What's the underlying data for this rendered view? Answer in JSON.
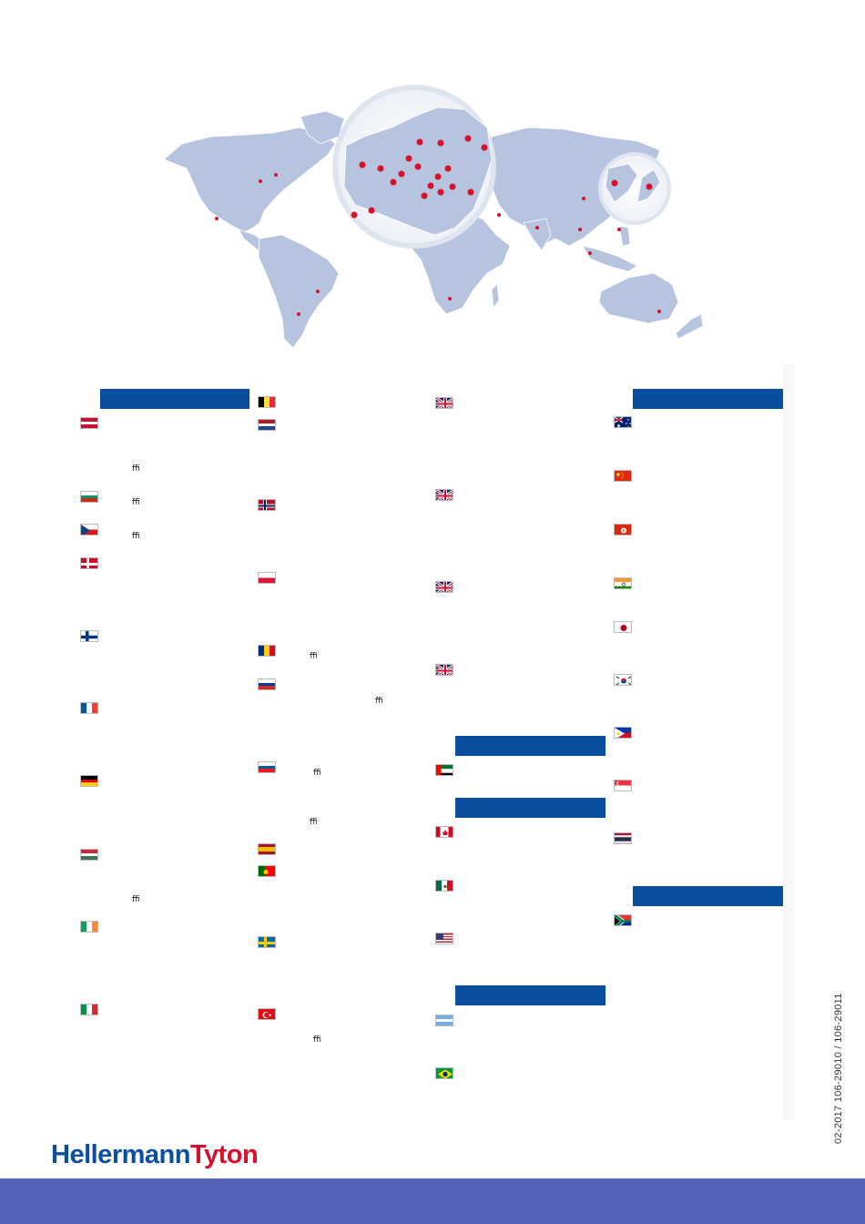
{
  "brand": {
    "part1": "Hellermann",
    "part2": "Tyton"
  },
  "document": {
    "code": "02-2017     106-29010 / 106-29011"
  },
  "ligatures": {
    "text": "ﬃ"
  },
  "colors": {
    "header_bar": "#0a4ea0",
    "footer_band": "#5562b6",
    "map_land": "#b6c4e0",
    "map_dot": "#d7102b"
  },
  "region_headers": [
    "",
    "",
    "",
    "",
    "",
    "",
    ""
  ],
  "flags": [
    "austria-flag",
    "bulgaria-flag",
    "czech-republic-flag",
    "denmark-flag",
    "finland-flag",
    "france-flag",
    "germany-flag",
    "hungary-flag",
    "ireland-flag",
    "italy-flag",
    "belgium-flag",
    "netherlands-flag",
    "norway-flag",
    "poland-flag",
    "romania-flag",
    "russia-flag",
    "slovenia-flag",
    "spain-flag",
    "portugal-flag",
    "sweden-flag",
    "turkey-flag",
    "uk-flag",
    "uk-flag",
    "uk-flag",
    "uk-flag",
    "uae-flag",
    "canada-flag",
    "mexico-flag",
    "usa-flag",
    "argentina-flag",
    "brazil-flag",
    "australia-flag",
    "china-flag",
    "hong-kong-flag",
    "india-flag",
    "japan-flag",
    "south-korea-flag",
    "philippines-flag",
    "singapore-flag",
    "thailand-flag",
    "south-africa-flag"
  ]
}
